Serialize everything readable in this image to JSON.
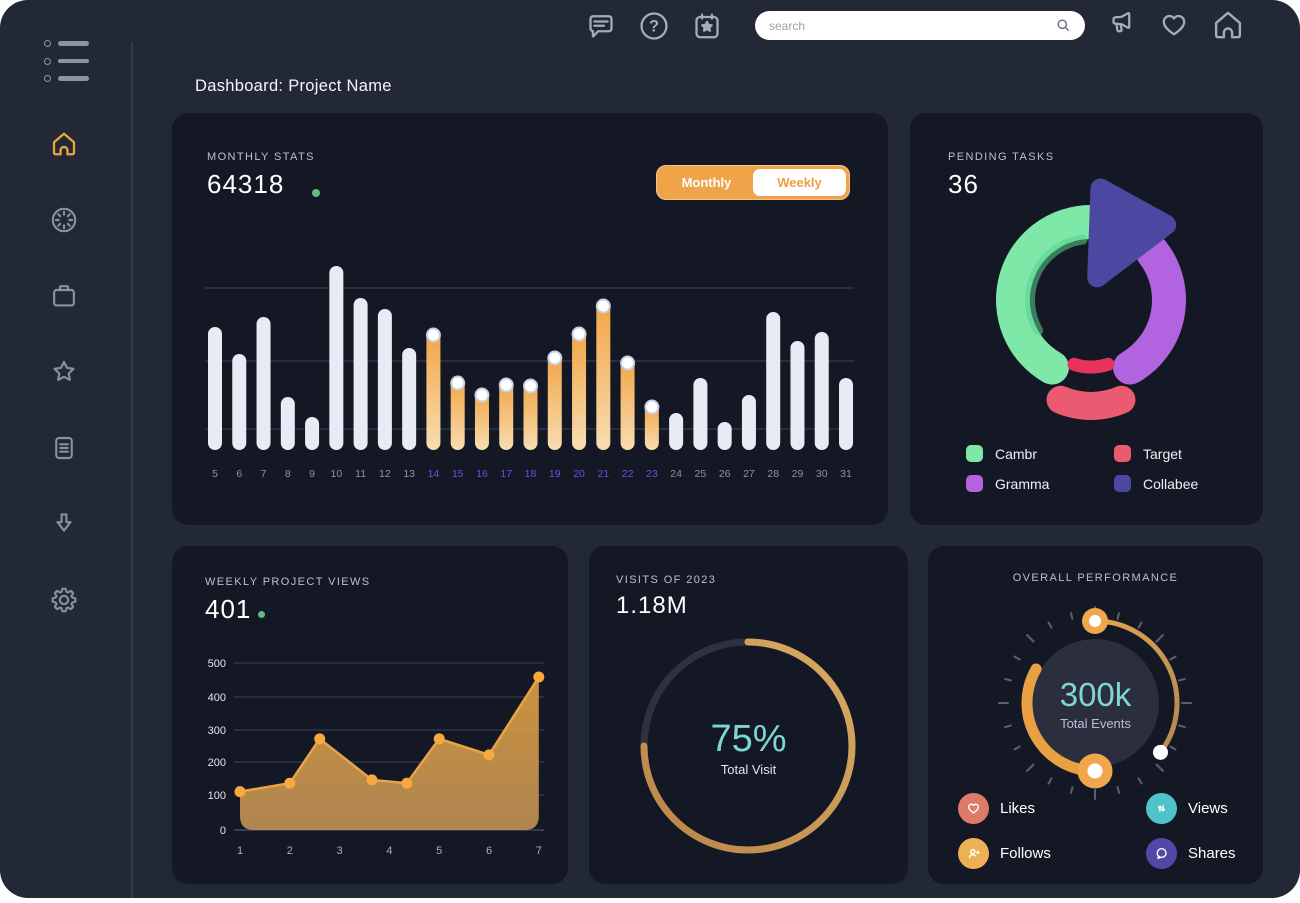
{
  "header": {
    "title": "Dashboard: Project Name"
  },
  "topbar": {
    "search_placeholder": "search",
    "left_icons": [
      "chat-icon",
      "help-icon",
      "calendar-star-icon"
    ],
    "right_icons": [
      "megaphone-icon",
      "heart-icon",
      "home-icon"
    ]
  },
  "sidebar": {
    "icons": [
      "menu-icon",
      "home-icon",
      "activity-spinner-icon",
      "briefcase-icon",
      "star-icon",
      "notes-icon",
      "download-icon",
      "gear-icon"
    ],
    "active_item": "home",
    "active_color": "#eda338"
  },
  "cards": {
    "monthly": {
      "label": "MONTHLY STATS",
      "value": "64318",
      "toggle": {
        "monthly": "Monthly",
        "weekly": "Weekly",
        "active": "Monthly"
      }
    },
    "pending": {
      "label": "PENDING TASKS",
      "value": "36",
      "legend": [
        {
          "label": "Cambr",
          "color": "#7de8a8"
        },
        {
          "label": "Target",
          "color": "#ea5b72"
        },
        {
          "label": "Gramma",
          "color": "#b163e0"
        },
        {
          "label": "Collabee",
          "color": "#4c47a0"
        }
      ]
    },
    "weekly": {
      "label": "WEEKLY PROJECT VIEWS",
      "value": "401"
    },
    "visits": {
      "label": "VISITS OF 2023",
      "value": "1.18M",
      "percent": "75%",
      "sub": "Total Visit"
    },
    "performance": {
      "label": "OVERALL PERFORMANCE",
      "value": "300k",
      "sub": "Total Events",
      "legend": [
        {
          "label": "Likes",
          "color": "#dd7a6a",
          "icon": "heart-icon"
        },
        {
          "label": "Views",
          "color": "#4fc3c9",
          "icon": "arrows-up-down-icon"
        },
        {
          "label": "Follows",
          "color": "#eeb054",
          "icon": "person-add-icon"
        },
        {
          "label": "Shares",
          "color": "#5149a8",
          "icon": "chat-bubble-icon"
        }
      ]
    }
  },
  "colors": {
    "page_bg": "#232836",
    "card_bg": "#141824",
    "accent_orange": "#f0a348",
    "highlight_purple": "#6453e8",
    "teal": "#7bd6d4",
    "green_dot": "#5dbe80",
    "bar_white": "#e9ebf4",
    "gridline": "#3e4459"
  },
  "chart_data": [
    {
      "id": "monthly_bars",
      "type": "bar",
      "title": "MONTHLY STATS",
      "value": "64318",
      "categories": [
        "5",
        "6",
        "7",
        "8",
        "9",
        "10",
        "11",
        "12",
        "13",
        "14",
        "15",
        "16",
        "17",
        "18",
        "19",
        "20",
        "21",
        "22",
        "23",
        "24",
        "25",
        "26",
        "27",
        "28",
        "29",
        "30",
        "31"
      ],
      "values": [
        123,
        96,
        133,
        53,
        33,
        184,
        152,
        141,
        102,
        120,
        72,
        60,
        70,
        69,
        97,
        121,
        149,
        92,
        48,
        37,
        72,
        28,
        55,
        138,
        109,
        118,
        72
      ],
      "unit": "relative-height",
      "highlighted_categories": [
        "14",
        "15",
        "16",
        "17",
        "18",
        "19",
        "20",
        "21",
        "22",
        "23"
      ],
      "bar_color": "#e9ebf4",
      "highlight_gradient": [
        "#f2a445",
        "#f8ddb2"
      ],
      "highlight_label_color": "#6453e8",
      "label_color": "#8d93a3",
      "grid": true
    },
    {
      "id": "pending_donut",
      "type": "pie",
      "title": "PENDING TASKS",
      "value": "36",
      "segments": [
        {
          "label": "Cambr",
          "percent": 42,
          "color": "#7de8a8"
        },
        {
          "label": "Target",
          "percent": 13,
          "color": "#ea5b72",
          "accent": "#e8335c"
        },
        {
          "label": "Gramma",
          "percent": 27,
          "color": "#b163e0"
        },
        {
          "label": "Collabee",
          "percent": 18,
          "color": "#4c47a0"
        }
      ],
      "legend_position": "bottom"
    },
    {
      "id": "weekly_area",
      "type": "area",
      "title": "WEEKLY PROJECT VIEWS",
      "value": "401",
      "x": [
        1,
        2,
        2.6,
        3.65,
        4.35,
        5,
        6,
        7
      ],
      "y": [
        115,
        140,
        273,
        150,
        140,
        273,
        225,
        458
      ],
      "xticks": [
        1,
        2,
        3,
        4,
        5,
        6,
        7
      ],
      "yticks": [
        0,
        100,
        200,
        300,
        400,
        500
      ],
      "ylim": [
        0,
        500
      ],
      "fill_gradient": [
        "#d6983e",
        "#c49456"
      ],
      "line_color": "#e8a445",
      "dot_color": "#f6a93e",
      "grid": true
    },
    {
      "id": "visits_radial",
      "type": "radial-progress",
      "title": "VISITS OF 2023",
      "value": "1.18M",
      "percent": 75,
      "center_label": "75%",
      "center_sub": "Total Visit",
      "ring_gradient": [
        "#b9854a",
        "#d8ab63"
      ],
      "track_color": "#2e3140"
    },
    {
      "id": "performance_gauge",
      "type": "gauge",
      "title": "OVERALL PERFORMANCE",
      "center_value": "300k",
      "center_sub": "Total Events",
      "primary_arc": {
        "color": "#e9a043",
        "sweep_deg": 120
      },
      "dial_arc": {
        "gradient": [
          "#e2a54e",
          "#b28a55"
        ],
        "sweep_deg": 127
      },
      "knob_color": "#f0a74c",
      "tick_color": "#596074"
    }
  ]
}
